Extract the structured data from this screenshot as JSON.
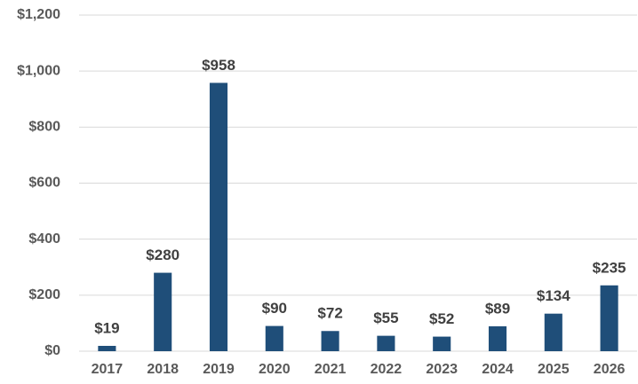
{
  "chart_data": {
    "type": "bar",
    "categories": [
      "2017",
      "2018",
      "2019",
      "2020",
      "2021",
      "2022",
      "2023",
      "2024",
      "2025",
      "2026"
    ],
    "values": [
      19,
      280,
      958,
      90,
      72,
      55,
      52,
      89,
      134,
      235
    ],
    "value_labels": [
      "$19",
      "$280",
      "$958",
      "$90",
      "$72",
      "$55",
      "$52",
      "$89",
      "$134",
      "$235"
    ],
    "color": "#1f4e79",
    "ylim": [
      0,
      1200
    ],
    "yticks": [
      {
        "value": 0,
        "label": "$0"
      },
      {
        "value": 200,
        "label": "$200"
      },
      {
        "value": 400,
        "label": "$400"
      },
      {
        "value": 600,
        "label": "$600"
      },
      {
        "value": 800,
        "label": "$800"
      },
      {
        "value": 1000,
        "label": "$1,000"
      },
      {
        "value": 1200,
        "label": "$1,200"
      }
    ],
    "grid": true
  }
}
